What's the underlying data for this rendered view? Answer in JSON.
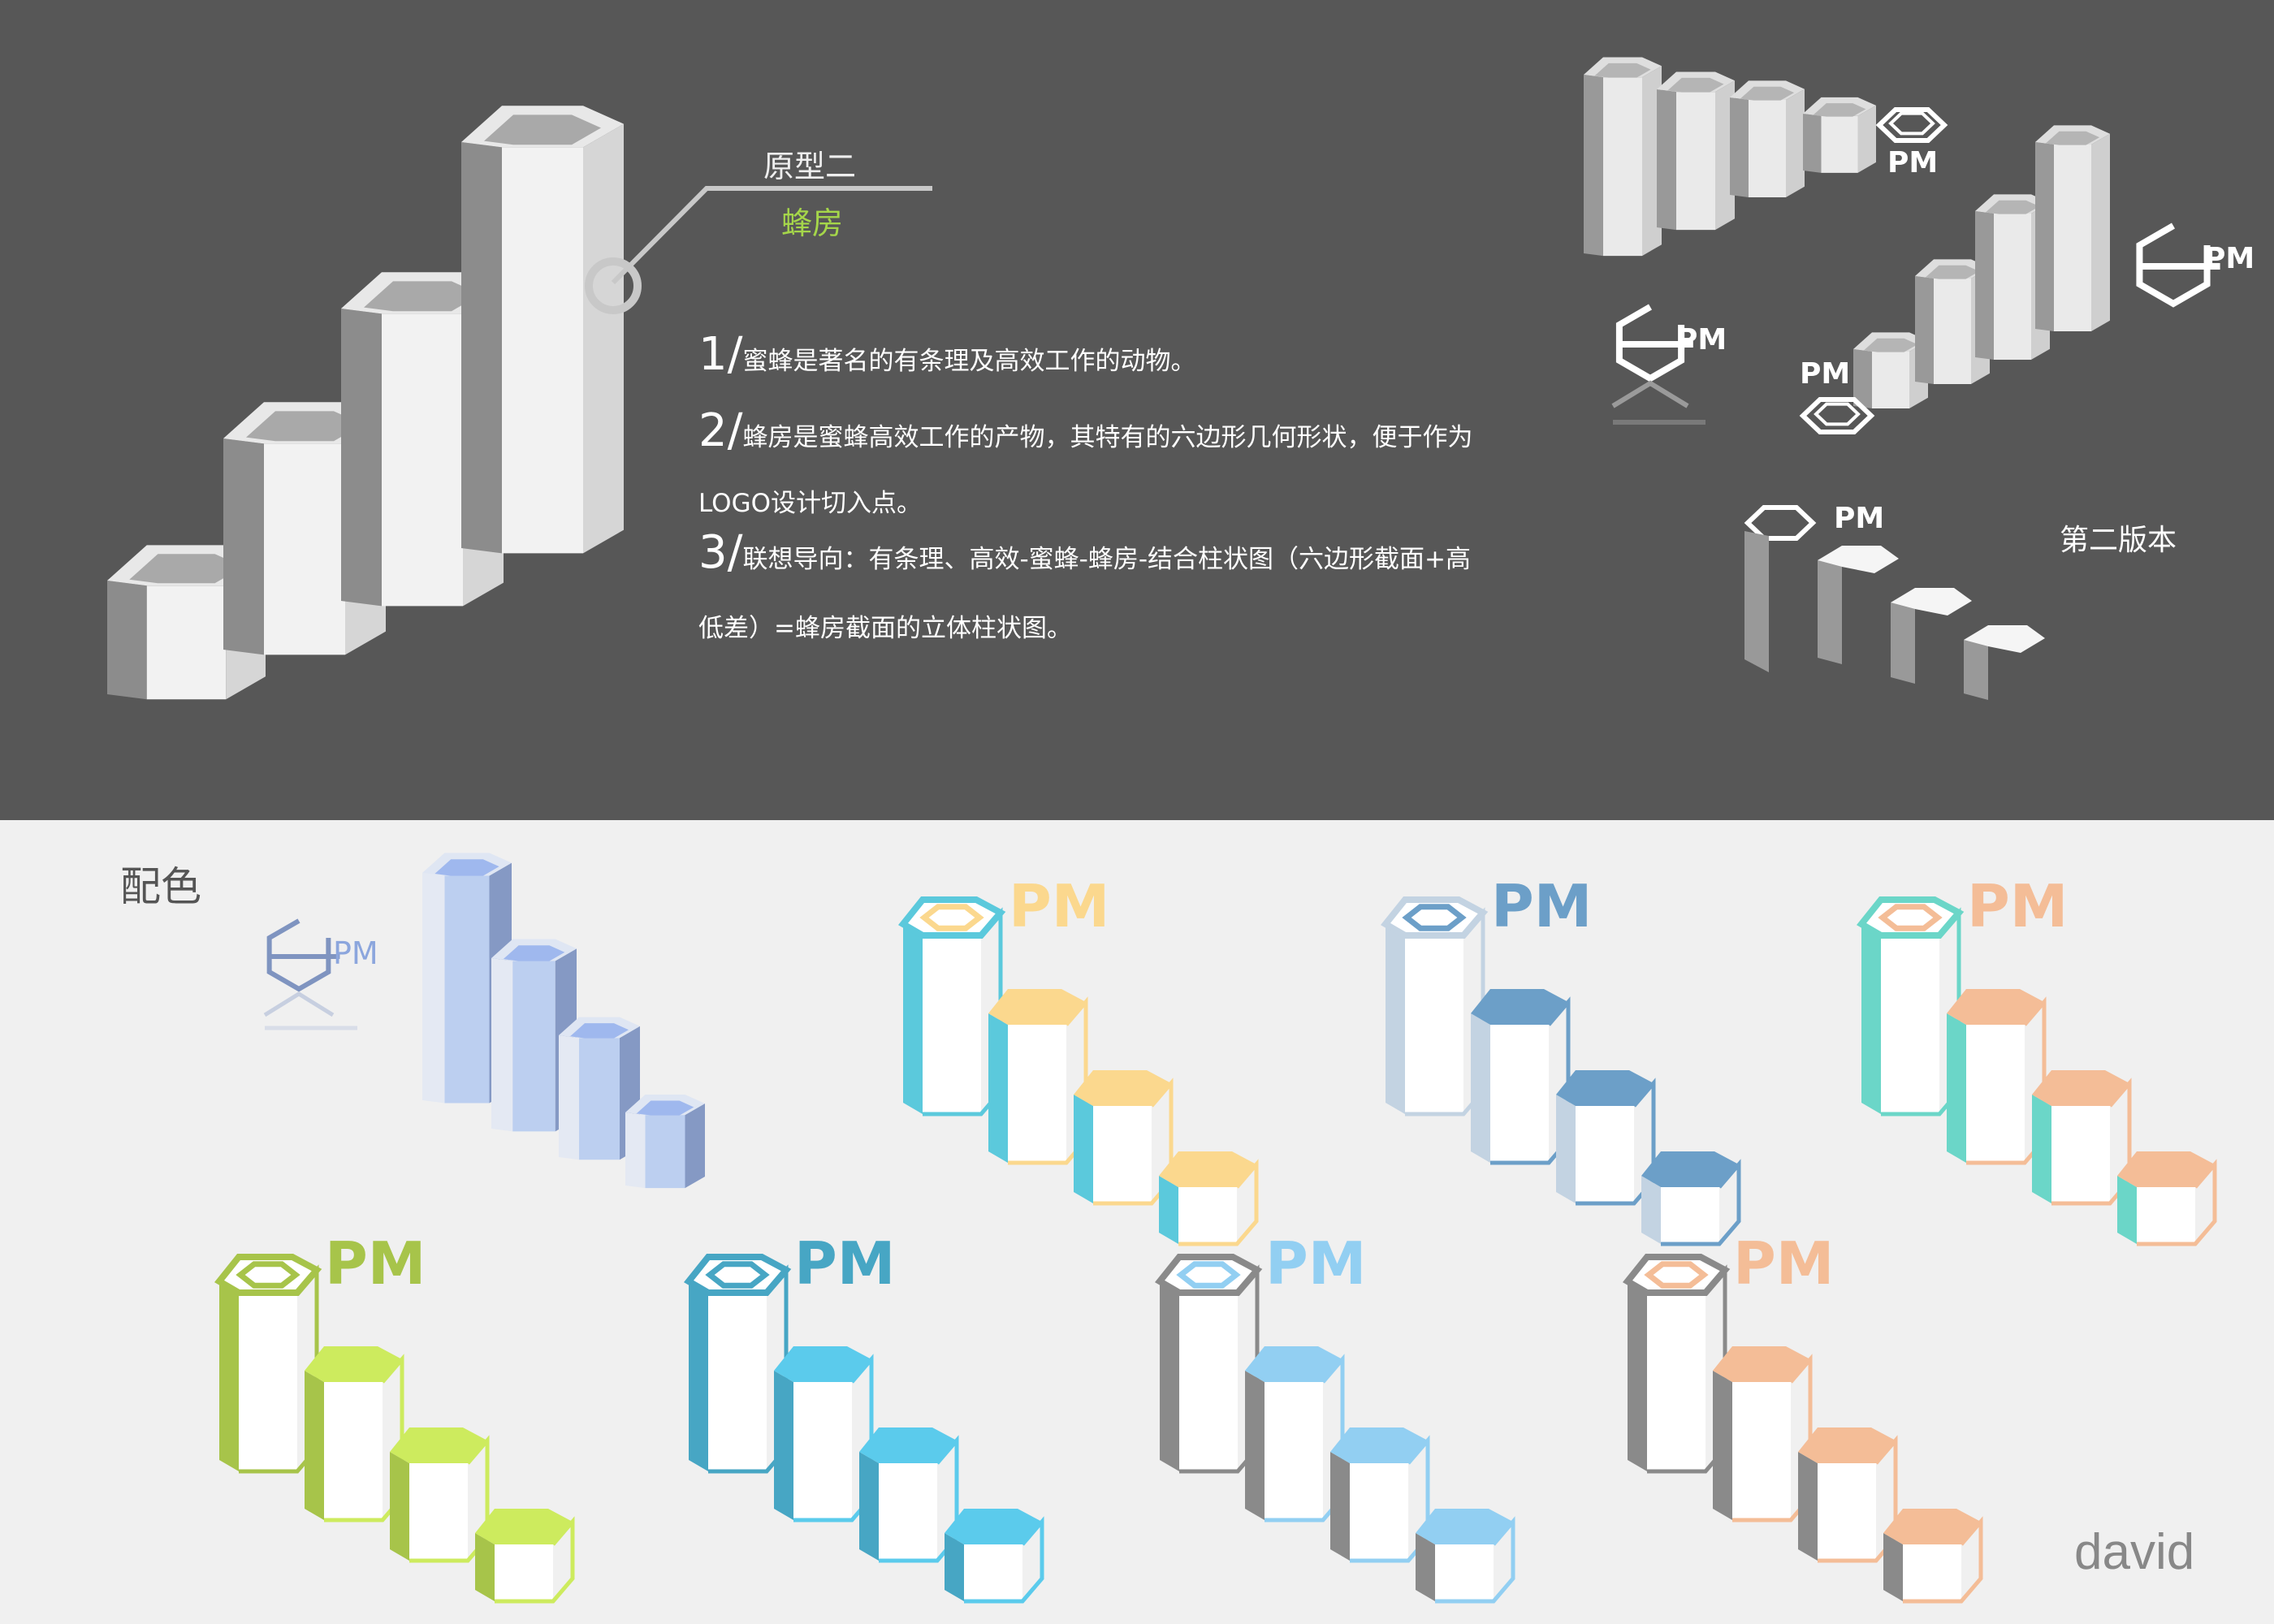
{
  "header": {
    "prototype_label": "原型二",
    "concept_label": "蜂房"
  },
  "description": [
    {
      "num": "1/",
      "text": "蜜蜂是著名的有条理及高效工作的动物。"
    },
    {
      "num": "2/",
      "text": "蜂房是蜜蜂高效工作的产物，其特有的六边形几何形状，便于作为",
      "cont": "LOGO设计切入点。"
    },
    {
      "num": "3/",
      "text": "联想导向：有条理、高效-蜜蜂-蜂房-结合柱状图（六边形截面+高",
      "cont": "低差）=蜂房截面的立体柱状图。"
    }
  ],
  "sketches": {
    "pm_labels": [
      "PM",
      "PM",
      "PM",
      "PM",
      "PM"
    ],
    "version_label": "第二版本"
  },
  "palette": {
    "section_label": "配色",
    "pm_label": "PM",
    "signature": "david",
    "variants": [
      {
        "name": "cyan-yellow",
        "left": "#5bc9dc",
        "top": "#fbd88e",
        "pm": "#fbd88e"
      },
      {
        "name": "light-steel",
        "left": "#c3d3e2",
        "top": "#6c9fc8",
        "pm": "#6c9fc8"
      },
      {
        "name": "teal-peach",
        "left": "#6bd6c8",
        "top": "#f4bd97",
        "pm": "#f4bd97"
      },
      {
        "name": "lime",
        "left": "#a7c44a",
        "top": "#cdeb5e",
        "pm": "#a7c44a"
      },
      {
        "name": "ocean",
        "left": "#47a6c4",
        "top": "#5bcbec",
        "pm": "#47a6c4"
      },
      {
        "name": "grey-sky",
        "left": "#8a8a8a",
        "top": "#92cff2",
        "pm": "#92cff2"
      },
      {
        "name": "grey-peach",
        "left": "#8a8a8a",
        "top": "#f4bd97",
        "pm": "#f4bd97"
      }
    ],
    "accent_green": "#a5d64a",
    "blue_variant": {
      "light": "#bccff0",
      "dark": "#8599c4",
      "top": "#9fb8ee"
    }
  }
}
